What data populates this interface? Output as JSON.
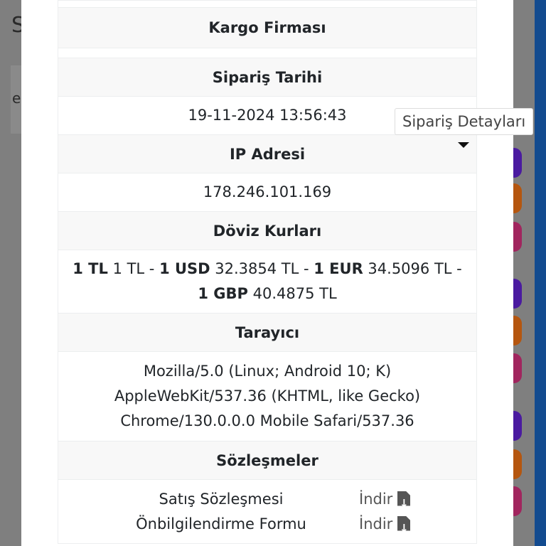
{
  "background": {
    "title_fragment": "S",
    "text_fragment": "e"
  },
  "tooltip": "Sipariş Detayları",
  "rows": {
    "cargo_header": "Kargo Firması",
    "order_date_header": "Sipariş Tarihi",
    "order_date": "19-11-2024 13:56:43",
    "ip_header": "IP Adresi",
    "ip": "178.246.101.169",
    "currency_header": "Döviz Kurları",
    "currency": [
      {
        "bold": "1 TL",
        "text": " 1 TL - "
      },
      {
        "bold": "1 USD",
        "text": " 32.3854 TL - "
      },
      {
        "bold": "1 EUR",
        "text": " 34.5096 TL - "
      },
      {
        "bold": "1 GBP",
        "text": " 40.4875 TL"
      }
    ],
    "browser_header": "Tarayıcı",
    "browser_lines": [
      "Mozilla/5.0 (Linux; Android 10; K)",
      "AppleWebKit/537.36 (KHTML, like Gecko)",
      "Chrome/130.0.0.0 Mobile Safari/537.36"
    ],
    "contracts_header": "Sözleşmeler",
    "contracts": [
      {
        "name": "Satış Sözleşmesi",
        "action": "İndir"
      },
      {
        "name": "Önbilgilendirme Formu",
        "action": "İndir"
      }
    ]
  },
  "colors": {
    "purple": "#4a1aa0",
    "orange": "#b5560f",
    "pink": "#a1255e",
    "blue": "#134b8f"
  }
}
